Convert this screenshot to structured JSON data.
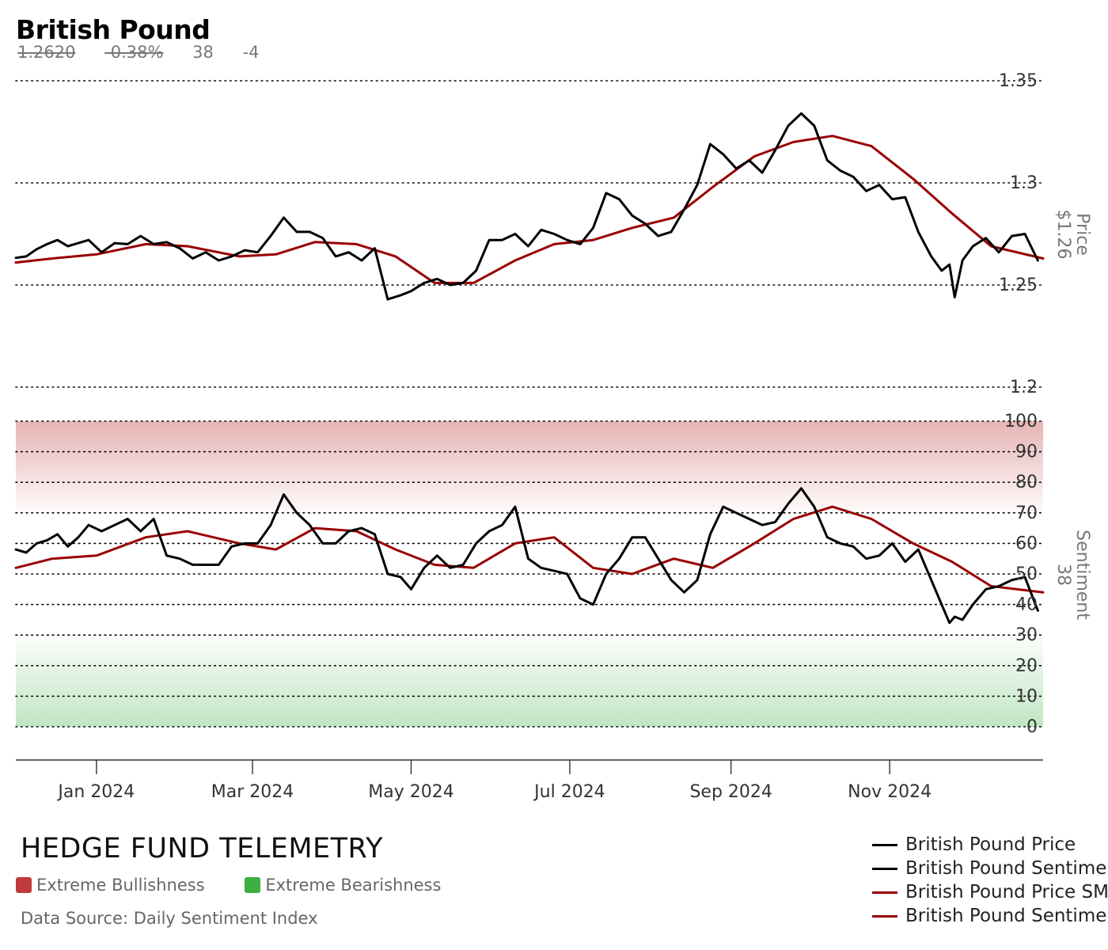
{
  "header": {
    "title": "British Pound",
    "price": "1.2620",
    "change": "-0.38%",
    "sentiment": "38",
    "sentiment_change": "-4"
  },
  "footer": {
    "brand": "HEDGE FUND TELEMETRY",
    "bullish_label": "Extreme Bullishness",
    "bearish_label": "Extreme Bearishness",
    "source": "Data Source: Daily Sentiment Index"
  },
  "colors": {
    "raw_line": "#000000",
    "sma_line": "#990000",
    "bullish": "#c0393b",
    "bearish": "#3cb043",
    "grid": "#000000",
    "axis_text": "#333333",
    "axis_title": "#777777"
  },
  "chart_data": [
    {
      "type": "line",
      "panel": "price",
      "axis_title": "Price",
      "axis_value": "$1.26",
      "ylim": [
        1.2,
        1.35
      ],
      "y_ticks": [
        "1.35",
        "1.3",
        "1.25",
        "1.2"
      ],
      "grid": "dotted horizontal",
      "x_range": [
        "2023-12-01",
        "2024-12-30"
      ],
      "x_ticks": [
        "Jan 2024",
        "Mar 2024",
        "May 2024",
        "Jul 2024",
        "Sep 2024",
        "Nov 2024"
      ],
      "series": [
        {
          "name": "British Pound Price",
          "points": [
            [
              "2023-12-01",
              1.2633
            ],
            [
              "2023-12-05",
              1.264
            ],
            [
              "2023-12-09",
              1.2675
            ],
            [
              "2023-12-13",
              1.27
            ],
            [
              "2023-12-17",
              1.272
            ],
            [
              "2023-12-21",
              1.269
            ],
            [
              "2023-12-25",
              1.2705
            ],
            [
              "2023-12-29",
              1.272
            ],
            [
              "2024-01-03",
              1.266
            ],
            [
              "2024-01-08",
              1.2705
            ],
            [
              "2024-01-13",
              1.27
            ],
            [
              "2024-01-18",
              1.274
            ],
            [
              "2024-01-23",
              1.27
            ],
            [
              "2024-01-28",
              1.271
            ],
            [
              "2024-02-02",
              1.268
            ],
            [
              "2024-02-07",
              1.263
            ],
            [
              "2024-02-12",
              1.266
            ],
            [
              "2024-02-17",
              1.262
            ],
            [
              "2024-02-22",
              1.264
            ],
            [
              "2024-02-27",
              1.267
            ],
            [
              "2024-03-03",
              1.266
            ],
            [
              "2024-03-08",
              1.274
            ],
            [
              "2024-03-13",
              1.283
            ],
            [
              "2024-03-18",
              1.276
            ],
            [
              "2024-03-23",
              1.276
            ],
            [
              "2024-03-28",
              1.273
            ],
            [
              "2024-04-02",
              1.264
            ],
            [
              "2024-04-07",
              1.266
            ],
            [
              "2024-04-12",
              1.262
            ],
            [
              "2024-04-17",
              1.268
            ],
            [
              "2024-04-22",
              1.243
            ],
            [
              "2024-04-27",
              1.245
            ],
            [
              "2024-05-01",
              1.247
            ],
            [
              "2024-05-06",
              1.251
            ],
            [
              "2024-05-11",
              1.253
            ],
            [
              "2024-05-16",
              1.25
            ],
            [
              "2024-05-21",
              1.251
            ],
            [
              "2024-05-26",
              1.257
            ],
            [
              "2024-05-31",
              1.272
            ],
            [
              "2024-06-05",
              1.272
            ],
            [
              "2024-06-10",
              1.275
            ],
            [
              "2024-06-15",
              1.269
            ],
            [
              "2024-06-20",
              1.277
            ],
            [
              "2024-06-25",
              1.275
            ],
            [
              "2024-06-30",
              1.272
            ],
            [
              "2024-07-05",
              1.27
            ],
            [
              "2024-07-10",
              1.278
            ],
            [
              "2024-07-15",
              1.295
            ],
            [
              "2024-07-20",
              1.292
            ],
            [
              "2024-07-25",
              1.284
            ],
            [
              "2024-07-30",
              1.28
            ],
            [
              "2024-08-04",
              1.274
            ],
            [
              "2024-08-09",
              1.276
            ],
            [
              "2024-08-14",
              1.287
            ],
            [
              "2024-08-19",
              1.299
            ],
            [
              "2024-08-24",
              1.319
            ],
            [
              "2024-08-29",
              1.314
            ],
            [
              "2024-09-03",
              1.307
            ],
            [
              "2024-09-08",
              1.311
            ],
            [
              "2024-09-13",
              1.305
            ],
            [
              "2024-09-18",
              1.316
            ],
            [
              "2024-09-23",
              1.328
            ],
            [
              "2024-09-28",
              1.334
            ],
            [
              "2024-10-03",
              1.328
            ],
            [
              "2024-10-08",
              1.311
            ],
            [
              "2024-10-13",
              1.306
            ],
            [
              "2024-10-18",
              1.303
            ],
            [
              "2024-10-23",
              1.296
            ],
            [
              "2024-10-28",
              1.299
            ],
            [
              "2024-11-02",
              1.292
            ],
            [
              "2024-11-07",
              1.293
            ],
            [
              "2024-11-12",
              1.276
            ],
            [
              "2024-11-17",
              1.264
            ],
            [
              "2024-11-21",
              1.257
            ],
            [
              "2024-11-24",
              1.26
            ],
            [
              "2024-11-26",
              1.244
            ],
            [
              "2024-11-29",
              1.262
            ],
            [
              "2024-12-03",
              1.269
            ],
            [
              "2024-12-08",
              1.273
            ],
            [
              "2024-12-13",
              1.266
            ],
            [
              "2024-12-18",
              1.274
            ],
            [
              "2024-12-23",
              1.275
            ],
            [
              "2024-12-28",
              1.262
            ]
          ]
        },
        {
          "name": "British Pound Price SMA",
          "points": [
            [
              "2023-12-01",
              1.261
            ],
            [
              "2023-12-15",
              1.263
            ],
            [
              "2024-01-01",
              1.265
            ],
            [
              "2024-01-20",
              1.27
            ],
            [
              "2024-02-05",
              1.269
            ],
            [
              "2024-02-25",
              1.264
            ],
            [
              "2024-03-10",
              1.265
            ],
            [
              "2024-03-25",
              1.271
            ],
            [
              "2024-04-10",
              1.27
            ],
            [
              "2024-04-25",
              1.264
            ],
            [
              "2024-05-10",
              1.251
            ],
            [
              "2024-05-25",
              1.251
            ],
            [
              "2024-06-10",
              1.262
            ],
            [
              "2024-06-25",
              1.27
            ],
            [
              "2024-07-10",
              1.272
            ],
            [
              "2024-07-25",
              1.278
            ],
            [
              "2024-08-10",
              1.283
            ],
            [
              "2024-08-25",
              1.298
            ],
            [
              "2024-09-10",
              1.313
            ],
            [
              "2024-09-25",
              1.32
            ],
            [
              "2024-10-10",
              1.323
            ],
            [
              "2024-10-25",
              1.318
            ],
            [
              "2024-11-10",
              1.302
            ],
            [
              "2024-11-25",
              1.285
            ],
            [
              "2024-12-10",
              1.269
            ],
            [
              "2024-12-30",
              1.263
            ]
          ]
        }
      ]
    },
    {
      "type": "line",
      "panel": "sentiment",
      "axis_title": "Sentiment",
      "axis_value": "38",
      "ylim": [
        0,
        100
      ],
      "y_ticks": [
        "100",
        "90",
        "80",
        "70",
        "60",
        "50",
        "40",
        "30",
        "20",
        "10",
        "0"
      ],
      "zones": [
        {
          "label": "Extreme Bullishness",
          "from": 70,
          "to": 100
        },
        {
          "label": "Extreme Bearishness",
          "from": 0,
          "to": 30
        }
      ],
      "grid": "dotted horizontal",
      "series": [
        {
          "name": "British Pound Sentiment",
          "points": [
            [
              "2023-12-01",
              58
            ],
            [
              "2023-12-05",
              57
            ],
            [
              "2023-12-09",
              60
            ],
            [
              "2023-12-13",
              61
            ],
            [
              "2023-12-17",
              63
            ],
            [
              "2023-12-21",
              59
            ],
            [
              "2023-12-25",
              62
            ],
            [
              "2023-12-29",
              66
            ],
            [
              "2024-01-03",
              64
            ],
            [
              "2024-01-08",
              66
            ],
            [
              "2024-01-13",
              68
            ],
            [
              "2024-01-18",
              64
            ],
            [
              "2024-01-23",
              68
            ],
            [
              "2024-01-28",
              56
            ],
            [
              "2024-02-02",
              55
            ],
            [
              "2024-02-07",
              53
            ],
            [
              "2024-02-12",
              53
            ],
            [
              "2024-02-17",
              53
            ],
            [
              "2024-02-22",
              59
            ],
            [
              "2024-02-27",
              60
            ],
            [
              "2024-03-03",
              60
            ],
            [
              "2024-03-08",
              66
            ],
            [
              "2024-03-13",
              76
            ],
            [
              "2024-03-18",
              70
            ],
            [
              "2024-03-23",
              66
            ],
            [
              "2024-03-28",
              60
            ],
            [
              "2024-04-02",
              60
            ],
            [
              "2024-04-07",
              64
            ],
            [
              "2024-04-12",
              65
            ],
            [
              "2024-04-17",
              63
            ],
            [
              "2024-04-22",
              50
            ],
            [
              "2024-04-27",
              49
            ],
            [
              "2024-05-01",
              45
            ],
            [
              "2024-05-06",
              52
            ],
            [
              "2024-05-11",
              56
            ],
            [
              "2024-05-16",
              52
            ],
            [
              "2024-05-21",
              53
            ],
            [
              "2024-05-26",
              60
            ],
            [
              "2024-05-31",
              64
            ],
            [
              "2024-06-05",
              66
            ],
            [
              "2024-06-10",
              72
            ],
            [
              "2024-06-15",
              55
            ],
            [
              "2024-06-20",
              52
            ],
            [
              "2024-06-25",
              51
            ],
            [
              "2024-06-30",
              50
            ],
            [
              "2024-07-05",
              42
            ],
            [
              "2024-07-10",
              40
            ],
            [
              "2024-07-15",
              50
            ],
            [
              "2024-07-20",
              55
            ],
            [
              "2024-07-25",
              62
            ],
            [
              "2024-07-30",
              62
            ],
            [
              "2024-08-04",
              55
            ],
            [
              "2024-08-09",
              48
            ],
            [
              "2024-08-14",
              44
            ],
            [
              "2024-08-19",
              48
            ],
            [
              "2024-08-24",
              63
            ],
            [
              "2024-08-29",
              72
            ],
            [
              "2024-09-03",
              70
            ],
            [
              "2024-09-08",
              68
            ],
            [
              "2024-09-13",
              66
            ],
            [
              "2024-09-18",
              67
            ],
            [
              "2024-09-23",
              73
            ],
            [
              "2024-09-28",
              78
            ],
            [
              "2024-10-03",
              72
            ],
            [
              "2024-10-08",
              62
            ],
            [
              "2024-10-13",
              60
            ],
            [
              "2024-10-18",
              59
            ],
            [
              "2024-10-23",
              55
            ],
            [
              "2024-10-28",
              56
            ],
            [
              "2024-11-02",
              60
            ],
            [
              "2024-11-07",
              54
            ],
            [
              "2024-11-12",
              58
            ],
            [
              "2024-11-17",
              48
            ],
            [
              "2024-11-21",
              40
            ],
            [
              "2024-11-24",
              34
            ],
            [
              "2024-11-26",
              36
            ],
            [
              "2024-11-29",
              35
            ],
            [
              "2024-12-03",
              40
            ],
            [
              "2024-12-08",
              45
            ],
            [
              "2024-12-13",
              46
            ],
            [
              "2024-12-18",
              48
            ],
            [
              "2024-12-23",
              49
            ],
            [
              "2024-12-28",
              38
            ]
          ]
        },
        {
          "name": "British Pound Sentiment SMA",
          "points": [
            [
              "2023-12-01",
              52
            ],
            [
              "2023-12-15",
              55
            ],
            [
              "2024-01-01",
              56
            ],
            [
              "2024-01-20",
              62
            ],
            [
              "2024-02-05",
              64
            ],
            [
              "2024-02-25",
              60
            ],
            [
              "2024-03-10",
              58
            ],
            [
              "2024-03-25",
              65
            ],
            [
              "2024-04-10",
              64
            ],
            [
              "2024-04-25",
              58
            ],
            [
              "2024-05-10",
              53
            ],
            [
              "2024-05-25",
              52
            ],
            [
              "2024-06-10",
              60
            ],
            [
              "2024-06-25",
              62
            ],
            [
              "2024-07-10",
              52
            ],
            [
              "2024-07-25",
              50
            ],
            [
              "2024-08-10",
              55
            ],
            [
              "2024-08-25",
              52
            ],
            [
              "2024-09-10",
              60
            ],
            [
              "2024-09-25",
              68
            ],
            [
              "2024-10-10",
              72
            ],
            [
              "2024-10-25",
              68
            ],
            [
              "2024-11-10",
              60
            ],
            [
              "2024-11-25",
              54
            ],
            [
              "2024-12-10",
              46
            ],
            [
              "2024-12-30",
              44
            ]
          ]
        }
      ]
    }
  ]
}
